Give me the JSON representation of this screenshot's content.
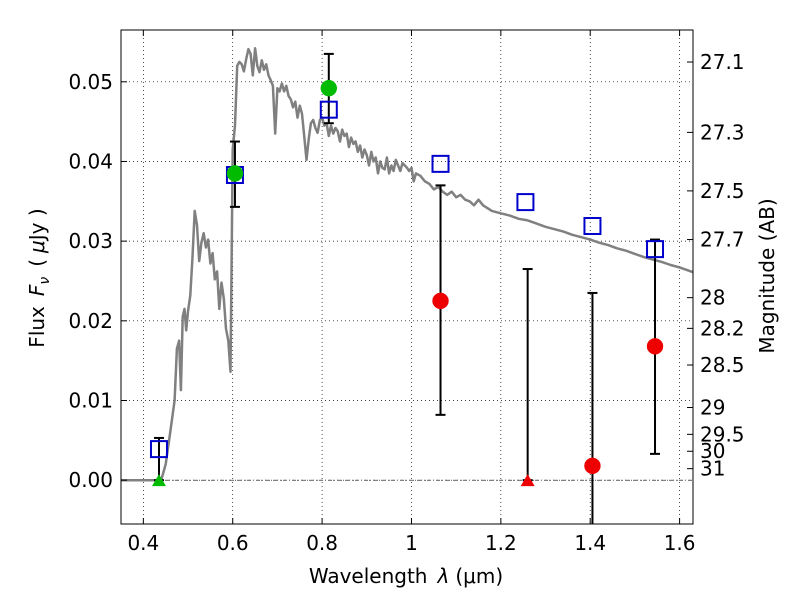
{
  "chart_data": {
    "type": "scatter",
    "xlabel_main": "Wavelength",
    "xlabel_symbol": "λ",
    "xlabel_unit": "(μm)",
    "ylabel_main": "Flux",
    "ylabel_symbol": "F",
    "ylabel_subscript": "ν",
    "ylabel_unit_open": "(",
    "ylabel_unit_symbol": "μ",
    "ylabel_unit_close": "Jy )",
    "ylabel_right": "Magnitude (AB)",
    "xlim": [
      0.35,
      1.63
    ],
    "ylim": [
      -0.0055,
      0.0565
    ],
    "grid": true,
    "x_ticks": [
      {
        "value": 0.4,
        "label": "0.4"
      },
      {
        "value": 0.6,
        "label": "0.6"
      },
      {
        "value": 0.8,
        "label": "0.8"
      },
      {
        "value": 1.0,
        "label": "1"
      },
      {
        "value": 1.2,
        "label": "1.2"
      },
      {
        "value": 1.4,
        "label": "1.4"
      },
      {
        "value": 1.6,
        "label": "1.6"
      }
    ],
    "y_ticks": [
      {
        "value": 0.0,
        "label": "0.00"
      },
      {
        "value": 0.01,
        "label": "0.01"
      },
      {
        "value": 0.02,
        "label": "0.02"
      },
      {
        "value": 0.03,
        "label": "0.03"
      },
      {
        "value": 0.04,
        "label": "0.04"
      },
      {
        "value": 0.05,
        "label": "0.05"
      }
    ],
    "mag_ticks": [
      {
        "mag": 27.1,
        "label": "27.1"
      },
      {
        "mag": 27.3,
        "label": "27.3"
      },
      {
        "mag": 27.5,
        "label": "27.5"
      },
      {
        "mag": 27.7,
        "label": "27.7"
      },
      {
        "mag": 28,
        "label": "28"
      },
      {
        "mag": 28.2,
        "label": "28.2"
      },
      {
        "mag": 28.5,
        "label": "28.5"
      },
      {
        "mag": 29,
        "label": "29"
      },
      {
        "mag": 29.5,
        "label": "29.5"
      },
      {
        "mag": 30,
        "label": "30"
      },
      {
        "mag": 31,
        "label": "31"
      }
    ],
    "zero_line": 0.0,
    "colors": {
      "sed": "#808080",
      "model": "#0000cc",
      "detection": "#00bb00",
      "nondetection": "#ee0000",
      "errorbar": "#000000",
      "grid": "#000000"
    },
    "sed_curve": [
      [
        0.35,
        0.0
      ],
      [
        0.43,
        0.0
      ],
      [
        0.44,
        0.0
      ],
      [
        0.45,
        0.002
      ],
      [
        0.46,
        0.006
      ],
      [
        0.47,
        0.01
      ],
      [
        0.475,
        0.0165
      ],
      [
        0.48,
        0.0175
      ],
      [
        0.484,
        0.0113
      ],
      [
        0.488,
        0.0205
      ],
      [
        0.492,
        0.0215
      ],
      [
        0.496,
        0.0188
      ],
      [
        0.5,
        0.0212
      ],
      [
        0.505,
        0.0232
      ],
      [
        0.51,
        0.028
      ],
      [
        0.515,
        0.0338
      ],
      [
        0.52,
        0.032
      ],
      [
        0.525,
        0.0275
      ],
      [
        0.53,
        0.0298
      ],
      [
        0.535,
        0.031
      ],
      [
        0.54,
        0.0292
      ],
      [
        0.545,
        0.0302
      ],
      [
        0.55,
        0.0272
      ],
      [
        0.555,
        0.0285
      ],
      [
        0.56,
        0.0252
      ],
      [
        0.565,
        0.0262
      ],
      [
        0.57,
        0.0215
      ],
      [
        0.575,
        0.0248
      ],
      [
        0.58,
        0.0228
      ],
      [
        0.585,
        0.019
      ],
      [
        0.59,
        0.0175
      ],
      [
        0.595,
        0.0136
      ],
      [
        0.6,
        0.0415
      ],
      [
        0.605,
        0.0445
      ],
      [
        0.61,
        0.052
      ],
      [
        0.615,
        0.0525
      ],
      [
        0.62,
        0.0522
      ],
      [
        0.625,
        0.0513
      ],
      [
        0.63,
        0.0528
      ],
      [
        0.635,
        0.0541
      ],
      [
        0.64,
        0.0535
      ],
      [
        0.645,
        0.0508
      ],
      [
        0.65,
        0.0542
      ],
      [
        0.655,
        0.052
      ],
      [
        0.66,
        0.0512
      ],
      [
        0.665,
        0.0527
      ],
      [
        0.67,
        0.0515
      ],
      [
        0.675,
        0.0522
      ],
      [
        0.68,
        0.0508
      ],
      [
        0.685,
        0.0502
      ],
      [
        0.69,
        0.0495
      ],
      [
        0.695,
        0.0435
      ],
      [
        0.7,
        0.0492
      ],
      [
        0.705,
        0.0488
      ],
      [
        0.71,
        0.0498
      ],
      [
        0.715,
        0.0488
      ],
      [
        0.72,
        0.0495
      ],
      [
        0.725,
        0.0482
      ],
      [
        0.73,
        0.0478
      ],
      [
        0.735,
        0.0468
      ],
      [
        0.74,
        0.0475
      ],
      [
        0.745,
        0.0455
      ],
      [
        0.75,
        0.047
      ],
      [
        0.755,
        0.046
      ],
      [
        0.76,
        0.0432
      ],
      [
        0.765,
        0.0402
      ],
      [
        0.77,
        0.0428
      ],
      [
        0.775,
        0.0448
      ],
      [
        0.78,
        0.0452
      ],
      [
        0.785,
        0.0442
      ],
      [
        0.79,
        0.0436
      ],
      [
        0.795,
        0.0452
      ],
      [
        0.8,
        0.0455
      ],
      [
        0.805,
        0.0445
      ],
      [
        0.81,
        0.0448
      ],
      [
        0.815,
        0.0432
      ],
      [
        0.82,
        0.0445
      ],
      [
        0.825,
        0.0435
      ],
      [
        0.83,
        0.0442
      ],
      [
        0.835,
        0.0438
      ],
      [
        0.84,
        0.0425
      ],
      [
        0.845,
        0.044
      ],
      [
        0.85,
        0.0432
      ],
      [
        0.855,
        0.0435
      ],
      [
        0.86,
        0.0418
      ],
      [
        0.865,
        0.043
      ],
      [
        0.87,
        0.0422
      ],
      [
        0.875,
        0.0425
      ],
      [
        0.88,
        0.0412
      ],
      [
        0.885,
        0.042
      ],
      [
        0.89,
        0.0405
      ],
      [
        0.895,
        0.0415
      ],
      [
        0.9,
        0.0408
      ],
      [
        0.905,
        0.0395
      ],
      [
        0.91,
        0.0412
      ],
      [
        0.915,
        0.04
      ],
      [
        0.92,
        0.0405
      ],
      [
        0.925,
        0.0385
      ],
      [
        0.93,
        0.04
      ],
      [
        0.935,
        0.0392
      ],
      [
        0.94,
        0.039
      ],
      [
        0.945,
        0.0405
      ],
      [
        0.95,
        0.0385
      ],
      [
        0.955,
        0.0395
      ],
      [
        0.96,
        0.0388
      ],
      [
        0.965,
        0.0402
      ],
      [
        0.97,
        0.0395
      ],
      [
        0.975,
        0.0388
      ],
      [
        0.98,
        0.0398
      ],
      [
        0.985,
        0.0395
      ],
      [
        0.99,
        0.0392
      ],
      [
        0.995,
        0.0388
      ],
      [
        1.0,
        0.0392
      ],
      [
        1.005,
        0.0375
      ],
      [
        1.01,
        0.0385
      ],
      [
        1.02,
        0.0382
      ],
      [
        1.03,
        0.0375
      ],
      [
        1.04,
        0.0372
      ],
      [
        1.05,
        0.0365
      ],
      [
        1.06,
        0.0368
      ],
      [
        1.07,
        0.0362
      ],
      [
        1.08,
        0.0358
      ],
      [
        1.09,
        0.0362
      ],
      [
        1.1,
        0.0355
      ],
      [
        1.11,
        0.0358
      ],
      [
        1.12,
        0.0352
      ],
      [
        1.13,
        0.035
      ],
      [
        1.14,
        0.0345
      ],
      [
        1.15,
        0.0352
      ],
      [
        1.16,
        0.0345
      ],
      [
        1.18,
        0.0338
      ],
      [
        1.2,
        0.0335
      ],
      [
        1.22,
        0.0332
      ],
      [
        1.24,
        0.0328
      ],
      [
        1.26,
        0.0326
      ],
      [
        1.28,
        0.0322
      ],
      [
        1.3,
        0.0318
      ],
      [
        1.32,
        0.0315
      ],
      [
        1.34,
        0.0312
      ],
      [
        1.36,
        0.0308
      ],
      [
        1.38,
        0.0305
      ],
      [
        1.4,
        0.0302
      ],
      [
        1.42,
        0.0298
      ],
      [
        1.44,
        0.0295
      ],
      [
        1.46,
        0.0291
      ],
      [
        1.48,
        0.0288
      ],
      [
        1.5,
        0.0284
      ],
      [
        1.52,
        0.028
      ],
      [
        1.54,
        0.0277
      ],
      [
        1.56,
        0.0274
      ],
      [
        1.58,
        0.027
      ],
      [
        1.6,
        0.0267
      ],
      [
        1.62,
        0.0263
      ],
      [
        1.63,
        0.0261
      ]
    ],
    "model_points": [
      {
        "x": 0.435,
        "y": 0.0039
      },
      {
        "x": 0.605,
        "y": 0.0383
      },
      {
        "x": 0.815,
        "y": 0.0465
      },
      {
        "x": 1.065,
        "y": 0.0397
      },
      {
        "x": 1.255,
        "y": 0.0349
      },
      {
        "x": 1.405,
        "y": 0.0319
      },
      {
        "x": 1.545,
        "y": 0.029
      }
    ],
    "observed_points": [
      {
        "x": 0.435,
        "y": 0.0,
        "marker": "triangle",
        "color": "detection",
        "err_low": 0.0,
        "err_high": 0.0053
      },
      {
        "x": 0.605,
        "y": 0.0385,
        "marker": "circle",
        "color": "detection",
        "err_low": 0.0343,
        "err_high": 0.0425
      },
      {
        "x": 0.815,
        "y": 0.0492,
        "marker": "circle",
        "color": "detection",
        "err_low": 0.0448,
        "err_high": 0.0535
      },
      {
        "x": 1.065,
        "y": 0.0225,
        "marker": "circle",
        "color": "nondetection",
        "err_low": 0.0082,
        "err_high": 0.037
      },
      {
        "x": 1.26,
        "y": 0.0,
        "marker": "triangle",
        "color": "nondetection",
        "err_low": 0.0,
        "err_high": 0.0265
      },
      {
        "x": 1.405,
        "y": 0.0018,
        "marker": "circle",
        "color": "nondetection",
        "err_low": -0.006,
        "err_high": 0.0235
      },
      {
        "x": 1.545,
        "y": 0.0168,
        "marker": "circle",
        "color": "nondetection",
        "err_low": 0.0033,
        "err_high": 0.0302
      }
    ]
  }
}
